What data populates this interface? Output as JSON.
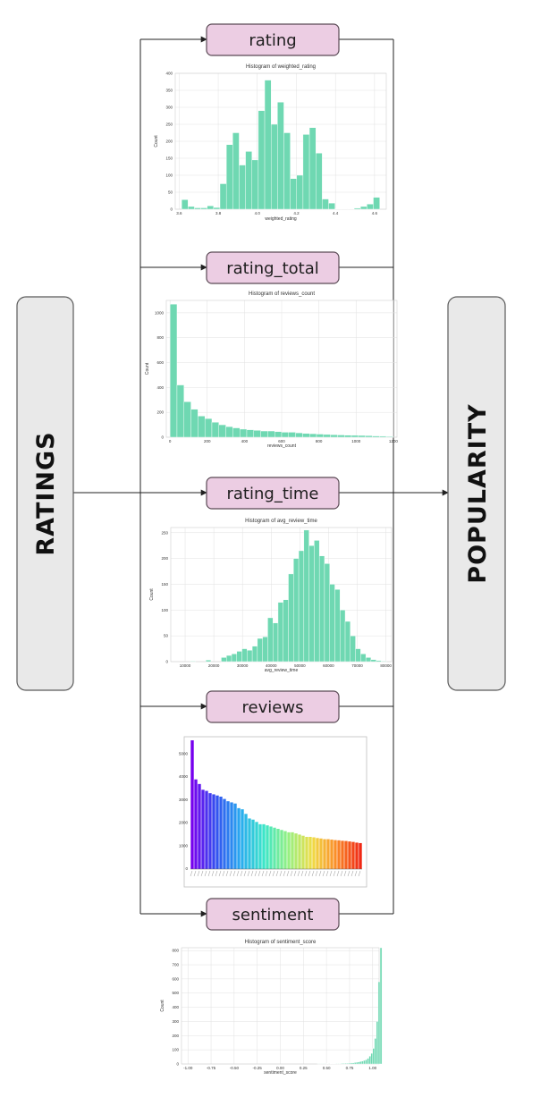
{
  "sides": {
    "left": "RATINGS",
    "right": "POPULARITY"
  },
  "nodes": [
    {
      "id": "rating",
      "label": "rating"
    },
    {
      "id": "rating_total",
      "label": "rating_total"
    },
    {
      "id": "rating_time",
      "label": "rating_time"
    },
    {
      "id": "reviews",
      "label": "reviews"
    },
    {
      "id": "sentiment",
      "label": "sentiment"
    }
  ],
  "chart_data": [
    {
      "type": "bar",
      "title": "Histogram of weighted_rating",
      "xlabel": "weighted_rating",
      "ylabel": "Count",
      "xlim": [
        3.58,
        4.66
      ],
      "ylim": [
        0,
        400
      ],
      "xticks": [
        3.6,
        3.8,
        4.0,
        4.2,
        4.4,
        4.6
      ],
      "xtick_labels": [
        "3.6",
        "3.8",
        "4.0",
        "4.2",
        "4.4",
        "4.6"
      ],
      "yticks": [
        0,
        50,
        100,
        150,
        200,
        250,
        300,
        350,
        400
      ],
      "yticks_labels": [
        "0",
        "50",
        "100",
        "150",
        "200",
        "250",
        "300",
        "350",
        "400"
      ],
      "bin_start": 3.58,
      "bin_width": 0.0327,
      "values": [
        0,
        28,
        8,
        4,
        4,
        10,
        5,
        75,
        190,
        225,
        130,
        170,
        145,
        290,
        380,
        250,
        315,
        225,
        90,
        100,
        220,
        240,
        165,
        30,
        18,
        1,
        1,
        1,
        3,
        8,
        15,
        35
      ],
      "grid": true
    },
    {
      "type": "bar",
      "title": "Histogram of reviews_count",
      "xlabel": "reviews_count",
      "ylabel": "Count",
      "xlim": [
        -20,
        1220
      ],
      "ylim": [
        0,
        1100
      ],
      "xticks": [
        0,
        200,
        400,
        600,
        800,
        1000,
        1200
      ],
      "xtick_labels": [
        "0",
        "200",
        "400",
        "600",
        "800",
        "1000",
        "1200"
      ],
      "yticks": [
        0,
        200,
        400,
        600,
        800,
        1000
      ],
      "yticks_labels": [
        "0",
        "200",
        "400",
        "600",
        "800",
        "1000"
      ],
      "bin_start": 0,
      "bin_width": 37.5,
      "values": [
        1070,
        420,
        285,
        225,
        170,
        150,
        120,
        100,
        85,
        75,
        65,
        60,
        55,
        50,
        50,
        45,
        40,
        40,
        35,
        30,
        28,
        25,
        22,
        20,
        18,
        16,
        15,
        14,
        12,
        10,
        8,
        6
      ],
      "grid": true
    },
    {
      "type": "bar",
      "title": "Histogram of avg_review_time",
      "xlabel": "avg_review_time",
      "ylabel": "Count",
      "xlim": [
        5000,
        82000
      ],
      "ylim": [
        0,
        260
      ],
      "xticks": [
        10000,
        20000,
        30000,
        40000,
        50000,
        60000,
        70000,
        80000
      ],
      "xtick_labels": [
        "10000",
        "20000",
        "30000",
        "40000",
        "50000",
        "60000",
        "70000",
        "80000"
      ],
      "yticks": [
        0,
        50,
        100,
        150,
        200,
        250
      ],
      "yticks_labels": [
        "0",
        "50",
        "100",
        "150",
        "200",
        "250"
      ],
      "bin_start": 10000,
      "bin_width": 1800,
      "values": [
        0,
        1,
        0,
        0,
        3,
        0,
        0,
        8,
        12,
        15,
        20,
        25,
        22,
        30,
        45,
        48,
        85,
        75,
        115,
        120,
        170,
        200,
        215,
        255,
        225,
        235,
        205,
        190,
        150,
        140,
        100,
        78,
        50,
        25,
        15,
        8,
        4,
        2,
        1
      ],
      "grid": true
    },
    {
      "type": "bar",
      "title": "",
      "xlabel": "",
      "ylabel": "",
      "ylim": [
        0,
        5600
      ],
      "yticks": [
        0,
        1000,
        2000,
        3000,
        4000,
        5000
      ],
      "yticks_labels": [
        "0",
        "1000",
        "2000",
        "3000",
        "4000",
        "5000"
      ],
      "values": [
        5600,
        3900,
        3700,
        3450,
        3400,
        3300,
        3250,
        3200,
        3150,
        3050,
        2950,
        2900,
        2850,
        2650,
        2600,
        2400,
        2200,
        2150,
        2050,
        1950,
        1950,
        1900,
        1850,
        1800,
        1750,
        1700,
        1650,
        1600,
        1600,
        1550,
        1500,
        1450,
        1400,
        1400,
        1380,
        1350,
        1330,
        1300,
        1300,
        1280,
        1260,
        1250,
        1230,
        1220,
        1200,
        1180,
        1150,
        1130
      ],
      "grid": false
    },
    {
      "type": "bar",
      "title": "Histogram of sentiment_score",
      "xlabel": "sentiment_score",
      "ylabel": "Count",
      "xlim": [
        -1.07,
        1.07
      ],
      "ylim": [
        0,
        820
      ],
      "xticks": [
        -1.0,
        -0.75,
        -0.5,
        -0.25,
        0.0,
        0.25,
        0.5,
        0.75,
        1.0
      ],
      "xtick_labels": [
        "-1.00",
        "-0.75",
        "-0.50",
        "-0.25",
        "0.00",
        "0.25",
        "0.50",
        "0.75",
        "1.00"
      ],
      "yticks": [
        0,
        100,
        200,
        300,
        400,
        500,
        600,
        700,
        800
      ],
      "yticks_labels": [
        "0",
        "100",
        "200",
        "300",
        "400",
        "500",
        "600",
        "700",
        "800"
      ],
      "bin_start": 0.4,
      "bin_width": 0.02,
      "values": [
        1,
        1,
        1,
        1,
        1,
        2,
        1,
        2,
        2,
        2,
        3,
        3,
        3,
        4,
        4,
        5,
        5,
        6,
        7,
        8,
        10,
        12,
        14,
        17,
        20,
        25,
        30,
        40,
        55,
        75,
        110,
        180,
        300,
        580,
        820
      ],
      "grid": true
    }
  ]
}
